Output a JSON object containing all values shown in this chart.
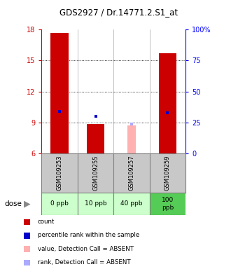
{
  "title": "GDS2927 / Dr.14771.2.S1_at",
  "categories": [
    "GSM109253",
    "GSM109255",
    "GSM109257",
    "GSM109259"
  ],
  "doses": [
    "0 ppb",
    "10 ppb",
    "40 ppb",
    "100\nppb"
  ],
  "bar_bottom": 6,
  "ylim": [
    6,
    18
  ],
  "y_ticks_left": [
    6,
    9,
    12,
    15,
    18
  ],
  "count_values": [
    17.7,
    8.85,
    null,
    15.7
  ],
  "absent_value_values": [
    null,
    null,
    8.7,
    null
  ],
  "percentile_rank_values": [
    10.1,
    9.6,
    null,
    9.9
  ],
  "absent_rank_values": [
    null,
    null,
    8.85,
    null
  ],
  "count_color": "#cc0000",
  "absent_value_color": "#ffb0b0",
  "percentile_rank_color": "#0000cc",
  "absent_rank_color": "#aaaaff",
  "plot_bg": "#ffffff",
  "sample_bg": "#c8c8c8",
  "dose_bg_normal": "#ccffcc",
  "dose_bg_highlight": "#55cc55",
  "bar_width": 0.5
}
